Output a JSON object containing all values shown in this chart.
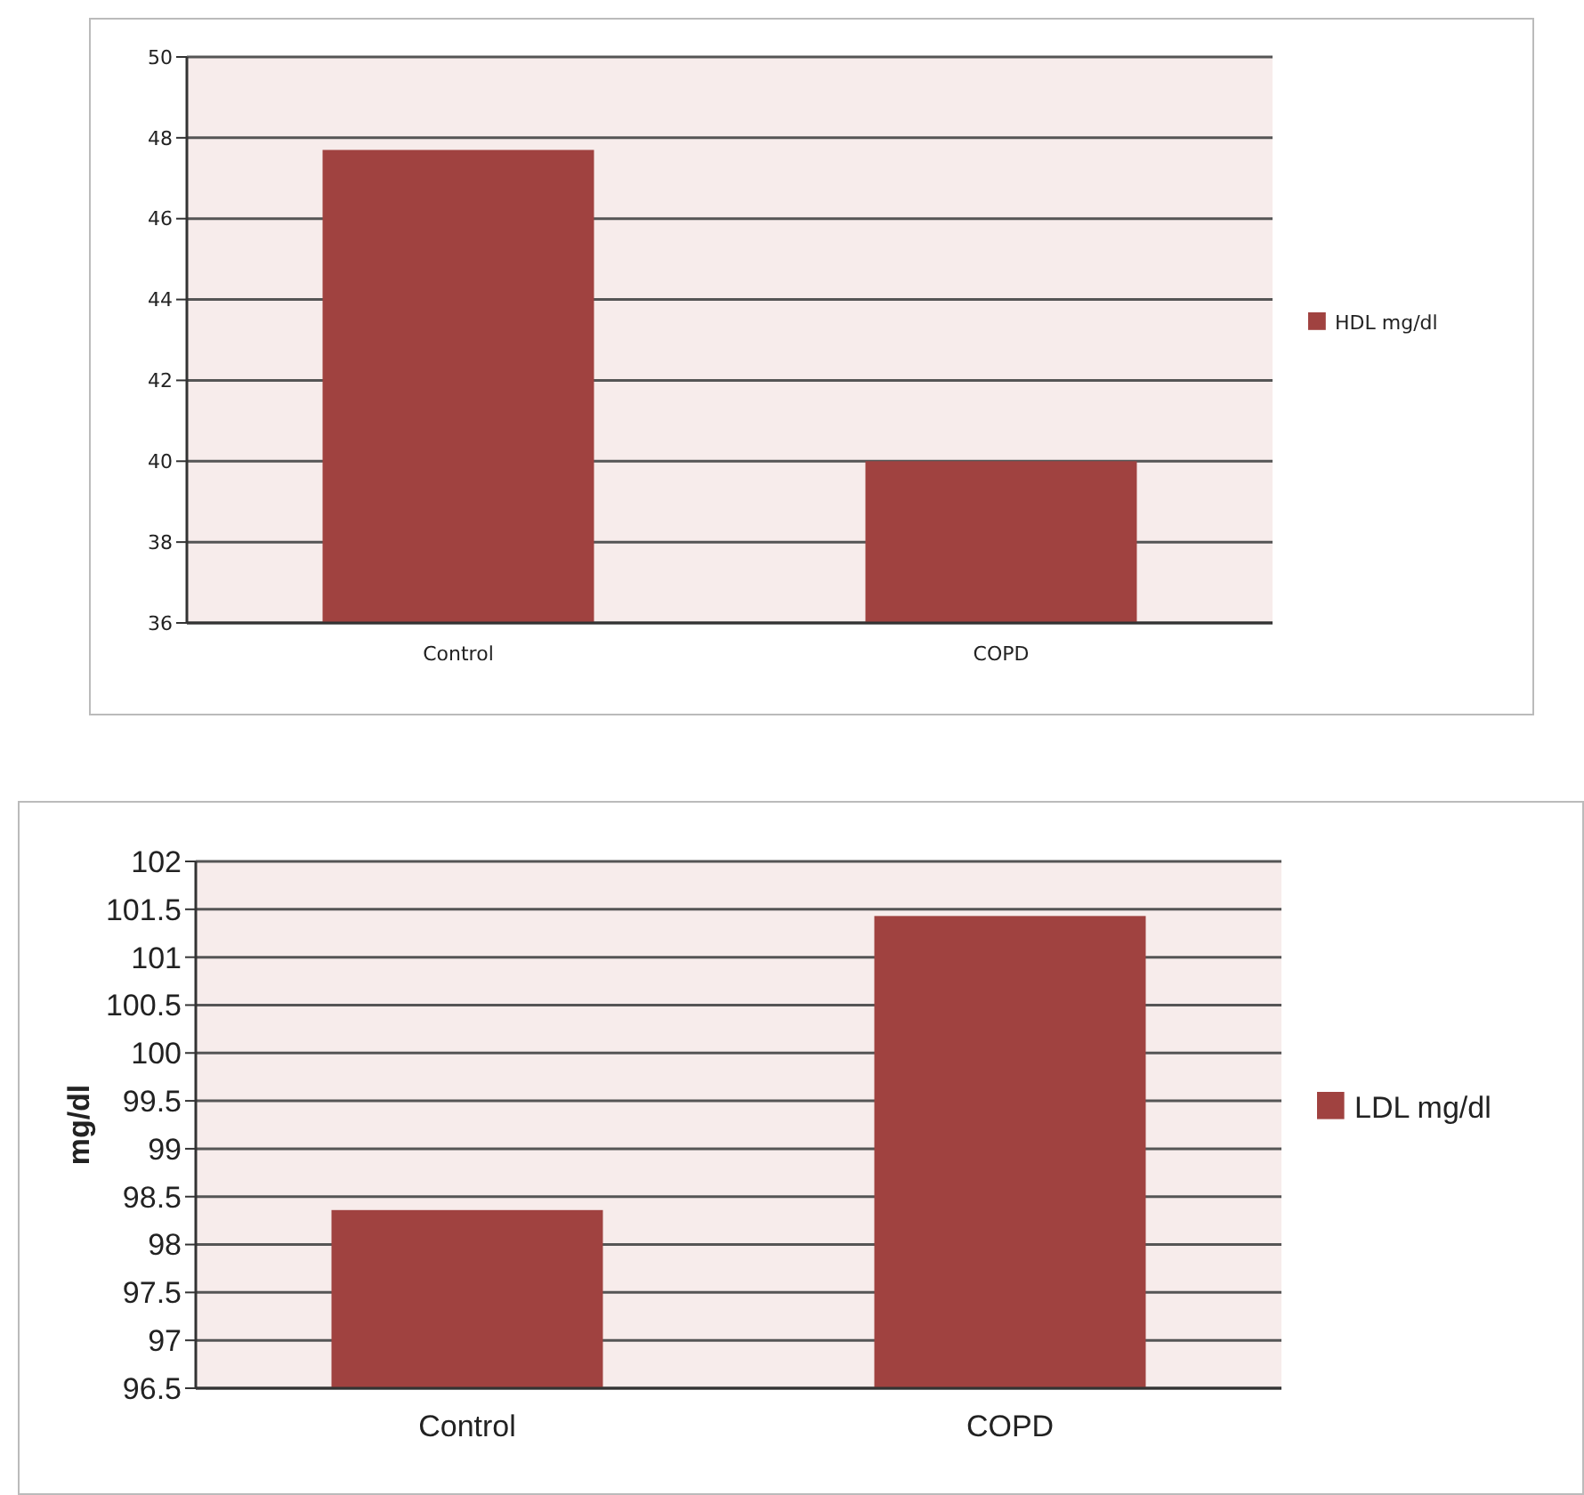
{
  "chart_data": [
    {
      "type": "bar",
      "categories": [
        "Control",
        "COPD"
      ],
      "series": [
        {
          "name": "HDL mg/dl",
          "color": "#a04240",
          "values": [
            47.7,
            40.0
          ]
        }
      ],
      "ylim": [
        36,
        50
      ],
      "yticks": [
        36,
        38,
        40,
        42,
        44,
        46,
        48,
        50
      ],
      "grid": "y",
      "legend": "right"
    },
    {
      "type": "bar",
      "categories": [
        "Control",
        "COPD"
      ],
      "series": [
        {
          "name": "LDL mg/dl",
          "color": "#a04240",
          "values": [
            98.36,
            101.43
          ]
        }
      ],
      "ylabel": "mg/dl",
      "ylim": [
        96.5,
        102
      ],
      "yticks": [
        96.5,
        97,
        97.5,
        98,
        98.5,
        99,
        99.5,
        100,
        100.5,
        101,
        101.5,
        102
      ],
      "grid": "y",
      "legend": "right"
    }
  ]
}
